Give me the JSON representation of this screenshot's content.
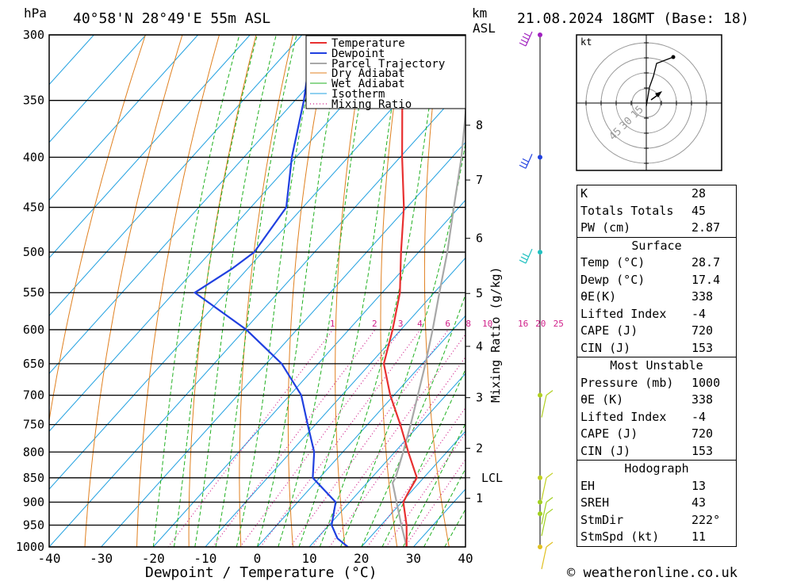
{
  "header": {
    "hpa_label": "hPa",
    "location": "40°58'N  28°49'E  55m  ASL",
    "km_label": "km",
    "asl_label": "ASL",
    "datetime": "21.08.2024  18GMT  (Base: 18)"
  },
  "x_axis": {
    "title": "Dewpoint / Temperature (°C)",
    "ticks": [
      "-40",
      "-30",
      "-20",
      "-10",
      "0",
      "10",
      "20",
      "30",
      "40"
    ]
  },
  "mixing_ratio_title": "Mixing Ratio (g/kg)",
  "mixing_ratio_labels": [
    "1",
    "2",
    "3",
    "4",
    "6",
    "8",
    "10",
    "16",
    "20",
    "25"
  ],
  "km_ticks": [
    "8",
    "7",
    "6",
    "5",
    "4",
    "3",
    "2",
    "LCL",
    "1"
  ],
  "legend": [
    "Temperature",
    "Dewpoint",
    "Parcel Trajectory",
    "Dry Adiabat",
    "Wet Adiabat",
    "Isotherm",
    "Mixing Ratio"
  ],
  "hodograph": {
    "unit": "kt",
    "ring_labels": [
      "15",
      "30",
      "45"
    ]
  },
  "indices": {
    "top": [
      {
        "label": "K",
        "value": "28"
      },
      {
        "label": "Totals Totals",
        "value": "45"
      },
      {
        "label": "PW (cm)",
        "value": "2.87"
      }
    ],
    "surface": {
      "title": "Surface",
      "rows": [
        {
          "label": "Temp (°C)",
          "value": "28.7"
        },
        {
          "label": "Dewp (°C)",
          "value": "17.4"
        },
        {
          "label": "θE(K)",
          "value": "338"
        },
        {
          "label": "Lifted Index",
          "value": "-4"
        },
        {
          "label": "CAPE (J)",
          "value": "720"
        },
        {
          "label": "CIN (J)",
          "value": "153"
        }
      ]
    },
    "most_unstable": {
      "title": "Most Unstable",
      "rows": [
        {
          "label": "Pressure (mb)",
          "value": "1000"
        },
        {
          "label": "θE (K)",
          "value": "338"
        },
        {
          "label": "Lifted Index",
          "value": "-4"
        },
        {
          "label": "CAPE (J)",
          "value": "720"
        },
        {
          "label": "CIN (J)",
          "value": "153"
        }
      ]
    },
    "hodograph": {
      "title": "Hodograph",
      "rows": [
        {
          "label": "EH",
          "value": "13"
        },
        {
          "label": "SREH",
          "value": "43"
        },
        {
          "label": "StmDir",
          "value": "222°"
        },
        {
          "label": "StmSpd (kt)",
          "value": "11"
        }
      ]
    }
  },
  "footer": "© weatheronline.co.uk",
  "colors": {
    "temperature": "#e83030",
    "dewpoint": "#2040e0",
    "parcel": "#a8a8a8",
    "dry_adiabat": "#e08020",
    "wet_adiabat": "#20b020",
    "isotherm": "#20a0e0",
    "mixing_ratio": "#d0208a"
  },
  "chart_data": {
    "type": "line",
    "title": "40°58'N  28°49'E  55m  ASL",
    "xlabel": "Dewpoint / Temperature (°C)",
    "ylabel": "hPa",
    "xlim": [
      -40,
      40
    ],
    "ylim": [
      1000,
      300
    ],
    "y_ticks": [
      300,
      350,
      400,
      450,
      500,
      550,
      600,
      650,
      700,
      750,
      800,
      850,
      900,
      950,
      1000
    ],
    "series": [
      {
        "name": "Temperature",
        "pressure": [
          1000,
          950,
          900,
          880,
          850,
          800,
          750,
          700,
          650,
          600,
          550,
          500,
          450,
          400,
          350,
          300
        ],
        "values": [
          28.7,
          24.9,
          20.3,
          19.6,
          18.7,
          12.6,
          6.3,
          -0.7,
          -7.4,
          -11.6,
          -16.6,
          -23.4,
          -30.6,
          -39.6,
          -49.4,
          -58.6
        ]
      },
      {
        "name": "Dewpoint",
        "pressure": [
          1000,
          980,
          950,
          900,
          850,
          800,
          750,
          700,
          650,
          600,
          550,
          520,
          500,
          450,
          400,
          350,
          300
        ],
        "values": [
          17.4,
          13.9,
          10.5,
          7.3,
          -1.3,
          -5.5,
          -11.5,
          -17.8,
          -27.0,
          -39.7,
          -56.0,
          -53.0,
          -51.6,
          -53.2,
          -60.8,
          -68.3,
          -77.9
        ]
      },
      {
        "name": "Parcel Trajectory",
        "pressure": [
          1000,
          950,
          900,
          860,
          850,
          800,
          750,
          700,
          650,
          600,
          550,
          500,
          450,
          400,
          350,
          300
        ],
        "values": [
          28.7,
          23.9,
          19.0,
          14.9,
          14.6,
          11.6,
          8.3,
          4.6,
          0.6,
          -3.9,
          -9.0,
          -14.5,
          -21.0,
          -28.2,
          -37.0,
          -47.5
        ]
      }
    ],
    "levels": {
      "LCL_hPa": 850
    }
  }
}
